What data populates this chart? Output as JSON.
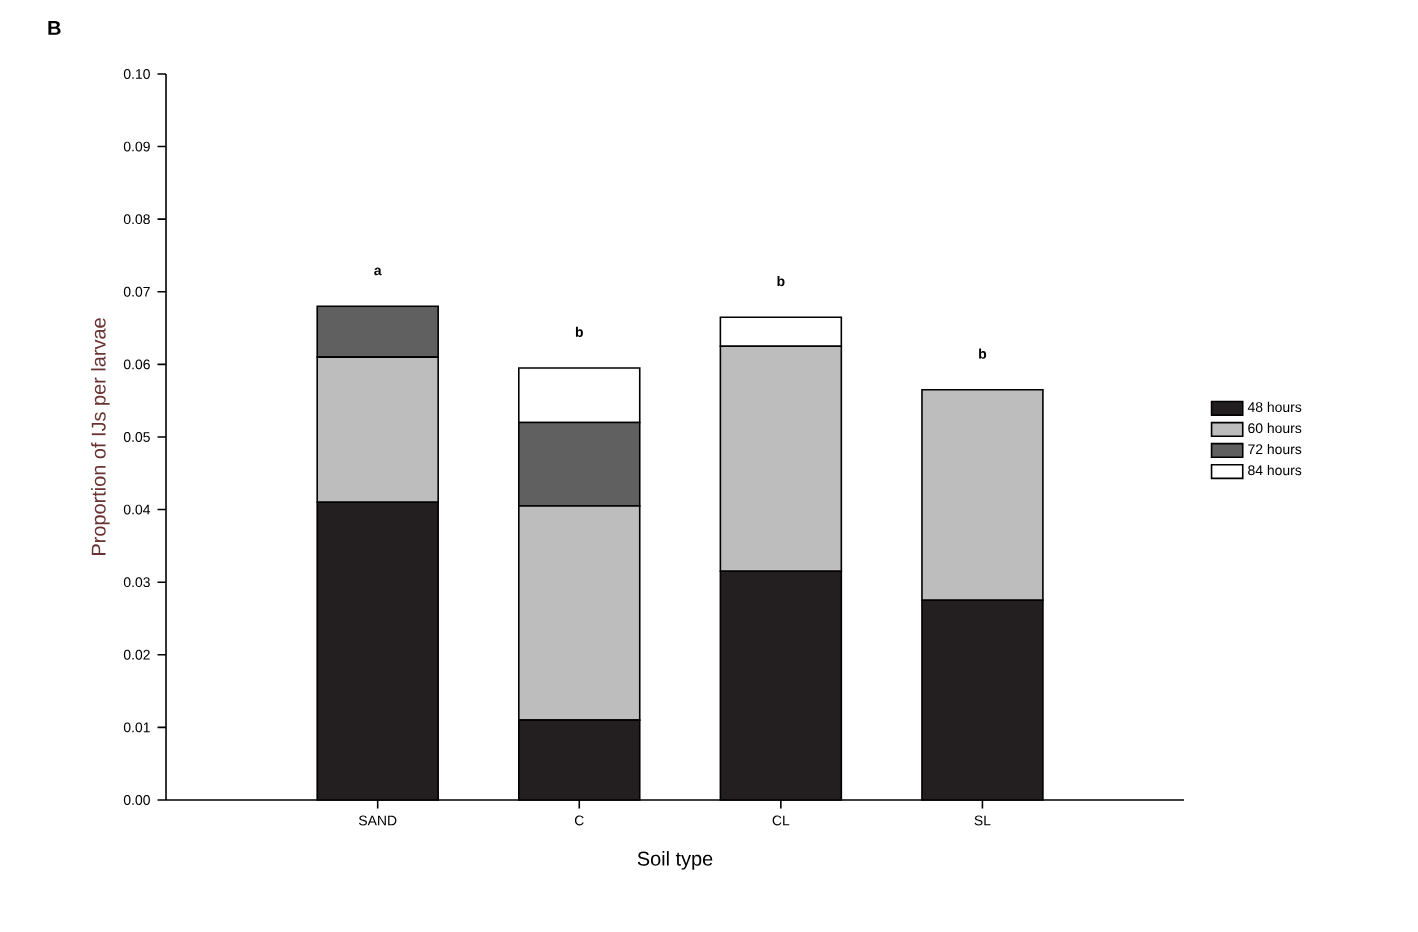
{
  "chart_data": {
    "type": "bar",
    "stacked": true,
    "title": "B",
    "xlabel": "Soil type",
    "ylabel": "Proportion of IJs per larvae",
    "categories": [
      "SAND",
      "C",
      "CL",
      "SL"
    ],
    "series": [
      {
        "name": "48 hours",
        "color": "#231f20",
        "values": [
          0.041,
          0.011,
          0.0315,
          0.0275
        ]
      },
      {
        "name": "60 hours",
        "color": "#bdbdbd",
        "values": [
          0.02,
          0.0295,
          0.031,
          0.029
        ]
      },
      {
        "name": "72 hours",
        "color": "#606060",
        "values": [
          0.007,
          0.0115,
          0,
          0
        ]
      },
      {
        "name": "84 hours",
        "color": "#ffffff",
        "values": [
          0,
          0.0075,
          0.004,
          0
        ]
      }
    ],
    "ylim": [
      0,
      0.1
    ],
    "yticks": [
      {
        "value": 0,
        "label": "0.00"
      },
      {
        "value": 0.01,
        "label": "0.01"
      },
      {
        "value": 0.02,
        "label": "0.02"
      },
      {
        "value": 0.03,
        "label": "0.03"
      },
      {
        "value": 0.04,
        "label": "0.04"
      },
      {
        "value": 0.05,
        "label": "0.05"
      },
      {
        "value": 0.06,
        "label": "0.06"
      },
      {
        "value": 0.07,
        "label": "0.07"
      },
      {
        "value": 0.08,
        "label": "0.08"
      },
      {
        "value": 0.09,
        "label": "0.09"
      },
      {
        "value": 0.1,
        "label": "0.10"
      }
    ],
    "legend": "right",
    "grid": false,
    "annotations": [
      "a",
      "b",
      "b",
      "b"
    ]
  }
}
